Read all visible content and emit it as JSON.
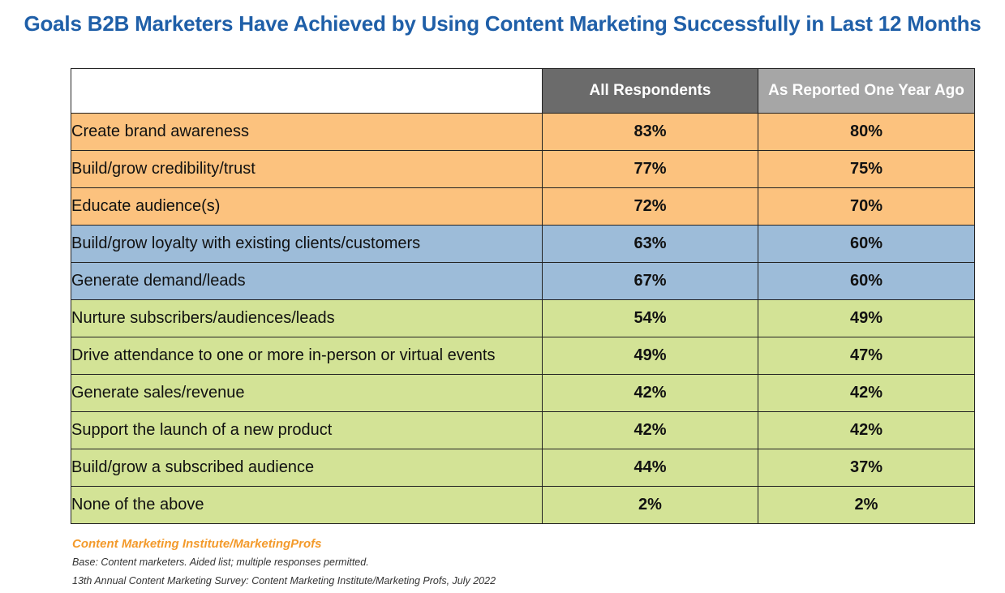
{
  "title": "Goals B2B Marketers Have Achieved by Using Content Marketing Successfully in Last 12 Months",
  "colors": {
    "title": "#1f5fa8",
    "header_all": "#6b6b6b",
    "header_prev": "#a6a6a6",
    "group_orange": "#fcc27e",
    "group_blue": "#9dbcd9",
    "group_green": "#d3e396",
    "source": "#f39a2b"
  },
  "chart_data": {
    "type": "table",
    "title": "Goals B2B Marketers Have Achieved by Using Content Marketing Successfully in Last 12 Months",
    "columns": [
      "All  Respondents",
      "As Reported One Year Ago"
    ],
    "rows": [
      {
        "label": "Create brand awareness",
        "group": "orange",
        "all": "83%",
        "prev": "80%"
      },
      {
        "label": "Build/grow credibility/trust",
        "group": "orange",
        "all": "77%",
        "prev": "75%"
      },
      {
        "label": "Educate audience(s)",
        "group": "orange",
        "all": "72%",
        "prev": "70%"
      },
      {
        "label": "Build/grow loyalty with existing clients/customers",
        "group": "blue",
        "all": "63%",
        "prev": "60%"
      },
      {
        "label": "Generate demand/leads",
        "group": "blue",
        "all": "67%",
        "prev": "60%"
      },
      {
        "label": "Nurture subscribers/audiences/leads",
        "group": "green",
        "all": "54%",
        "prev": "49%"
      },
      {
        "label": "Drive attendance to one or more in-person or virtual events",
        "group": "green",
        "all": "49%",
        "prev": "47%"
      },
      {
        "label": "Generate sales/revenue",
        "group": "green",
        "all": "42%",
        "prev": "42%"
      },
      {
        "label": "Support the launch of a new product",
        "group": "green",
        "all": "42%",
        "prev": "42%"
      },
      {
        "label": "Build/grow a subscribed audience",
        "group": "green",
        "all": "44%",
        "prev": "37%"
      },
      {
        "label": "None of the above",
        "group": "green",
        "all": "2%",
        "prev": "2%"
      }
    ]
  },
  "footer": {
    "source": "Content Marketing Institute/MarketingProfs",
    "base": "Base: Content marketers. Aided list; multiple responses permitted.",
    "survey": "13th Annual Content Marketing Survey: Content Marketing Institute/Marketing Profs, July 2022"
  }
}
